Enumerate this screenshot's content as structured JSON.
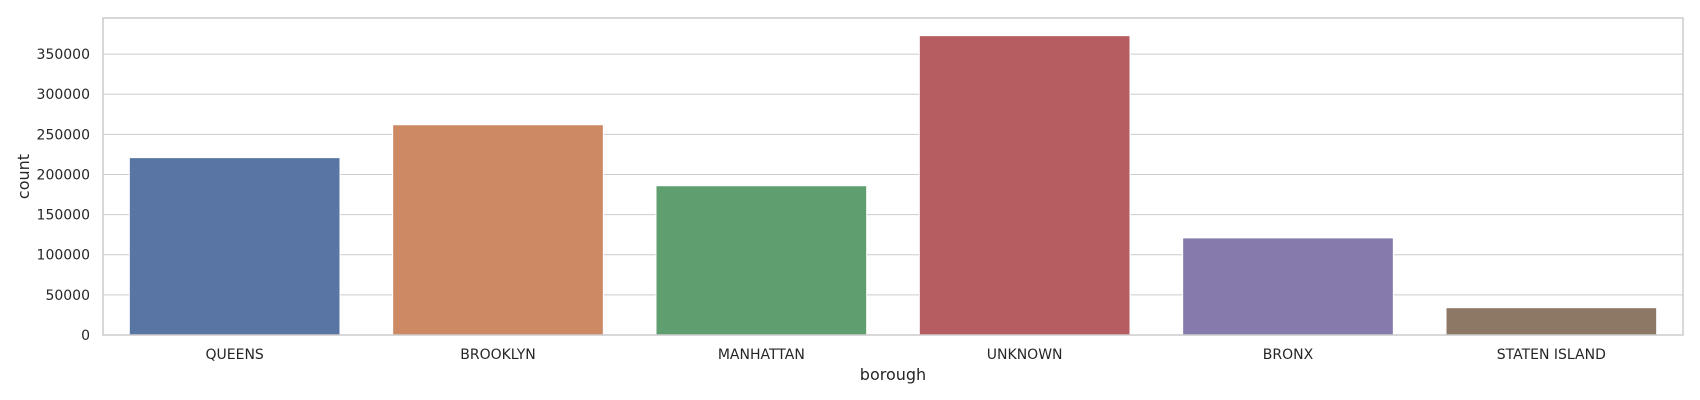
{
  "chart_data": {
    "type": "bar",
    "xlabel": "borough",
    "ylabel": "count",
    "categories": [
      "QUEENS",
      "BROOKLYN",
      "MANHATTAN",
      "UNKNOWN",
      "BRONX",
      "STATEN ISLAND"
    ],
    "values": [
      221000,
      262000,
      186000,
      373000,
      121000,
      34000
    ],
    "colors": [
      "#5875a4",
      "#cc8963",
      "#5f9e6e",
      "#b55d60",
      "#857aab",
      "#8d7866"
    ],
    "ylim": [
      0,
      395000
    ],
    "yticks": [
      0,
      50000,
      100000,
      150000,
      200000,
      250000,
      300000,
      350000
    ],
    "grid": true,
    "legend": "none"
  }
}
